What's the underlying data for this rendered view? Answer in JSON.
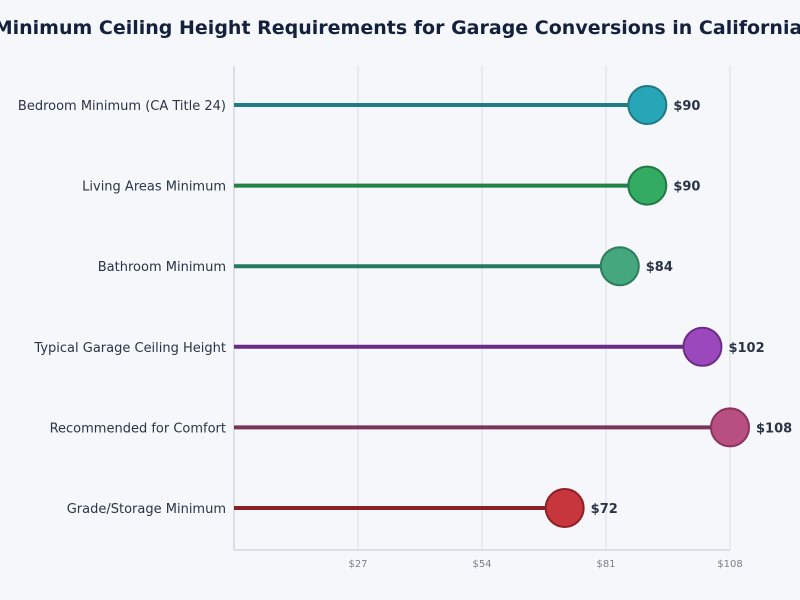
{
  "chart_data": {
    "type": "lollipop",
    "title": "Minimum Ceiling Height Requirements for Garage Conversions in California",
    "xlabel": "",
    "ylabel": "",
    "xlim": [
      0,
      108
    ],
    "x_ticks": [
      27,
      54,
      81,
      108
    ],
    "x_tick_labels": [
      "$27",
      "$54",
      "$81",
      "$108"
    ],
    "grid": "vertical",
    "categories": [
      "Bedroom Minimum (CA Title 24)",
      "Living Areas Minimum",
      "Bathroom Minimum",
      "Typical Garage Ceiling Height",
      "Recommended for Comfort",
      "Grade/Storage Minimum"
    ],
    "values": [
      90,
      90,
      84,
      102,
      108,
      72
    ],
    "value_labels": [
      "$90",
      "$90",
      "$84",
      "$102",
      "$108",
      "$72"
    ],
    "line_colors": [
      "#1f7a86",
      "#238047",
      "#237a5c",
      "#6a2b86",
      "#7a3458",
      "#8e1f26"
    ],
    "dot_colors": [
      "#27a6b8",
      "#33ab63",
      "#45a77d",
      "#9b48bd",
      "#b74f80",
      "#c6363c"
    ],
    "dot_stroke_colors": [
      "#1f7a86",
      "#1f7a44",
      "#2f7d5a",
      "#6e2c8a",
      "#8a3260",
      "#8e1f26"
    ]
  }
}
